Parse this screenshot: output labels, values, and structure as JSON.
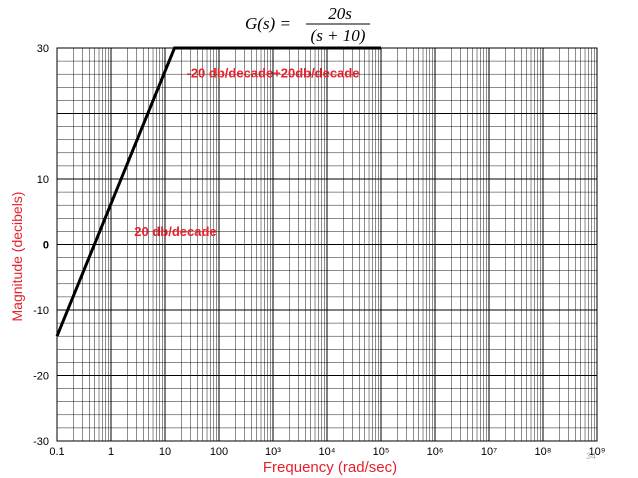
{
  "formula": {
    "lhs": "G(s) =",
    "numerator": "20s",
    "denominator": "(s + 10)"
  },
  "page_number": "34",
  "chart_data": {
    "type": "line",
    "title": "",
    "xlabel": "Frequency (rad/sec)",
    "ylabel": "Magnitude (decibels)",
    "x_scale": "log",
    "xlim": [
      0.1,
      1000000000
    ],
    "ylim": [
      -30,
      30
    ],
    "grid": true,
    "x_ticks": [
      0.1,
      1,
      10,
      100,
      1000,
      10000,
      100000,
      1000000,
      10000000,
      100000000,
      1000000000
    ],
    "x_tick_labels": [
      "0.1",
      "1",
      "10",
      "100",
      "10³",
      "10⁴",
      "10⁵",
      "10⁶",
      "10⁷",
      "10⁸",
      "10⁹"
    ],
    "y_ticks": [
      30,
      10,
      0,
      -10,
      -20,
      -30
    ],
    "y_tick_labels": [
      "30",
      "10",
      "0",
      "-10",
      "-20",
      "-30"
    ],
    "series": [
      {
        "x": [
          0.1,
          15,
          100000
        ],
        "y": [
          -14,
          30,
          30
        ],
        "color": "#000000"
      }
    ],
    "annotations": [
      {
        "text": "20 db/decade",
        "x": 2.7,
        "y": 1.3
      },
      {
        "text": "-20 db/decade+20db/decade",
        "x": 25,
        "y": 25.5
      }
    ]
  },
  "colors": {
    "accent": "#e8202a",
    "line": "#000000",
    "grid": "#000000"
  }
}
